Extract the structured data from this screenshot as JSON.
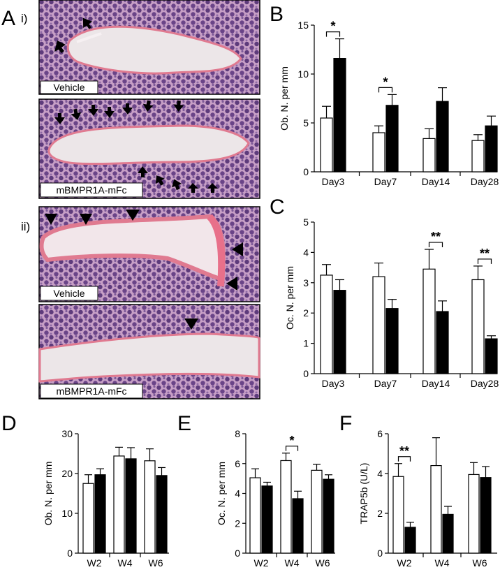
{
  "panel_letters": {
    "A": "A",
    "B": "B",
    "C": "C",
    "D": "D",
    "E": "E",
    "F": "F",
    "i": "i)",
    "ii": "ii)"
  },
  "micrographs": [
    {
      "label": "Vehicle",
      "markers": "arrows"
    },
    {
      "label": "mBMPR1A-mFc",
      "markers": "arrows"
    },
    {
      "label": "Vehicle",
      "markers": "arrowheads"
    },
    {
      "label": "mBMPR1A-mFc",
      "markers": "arrowheads"
    }
  ],
  "colors": {
    "bar_open": "#ffffff",
    "bar_filled": "#000000",
    "tissue": "#8b5a9a",
    "bone": "#ece6e8",
    "stain": "#e07a90"
  },
  "chart_data": [
    {
      "id": "B",
      "type": "bar",
      "ylabel": "Ob. N. per mm",
      "categories": [
        "Day3",
        "Day7",
        "Day14",
        "Day28"
      ],
      "ylim": [
        0,
        15
      ],
      "yticks": [
        0,
        5,
        10,
        15
      ],
      "series": [
        {
          "values": [
            5.5,
            4.0,
            3.4,
            3.2
          ],
          "errors": [
            1.2,
            0.7,
            1.0,
            0.6
          ]
        },
        {
          "values": [
            11.6,
            6.8,
            7.2,
            4.7
          ],
          "errors": [
            2.0,
            1.1,
            1.4,
            1.0
          ]
        }
      ],
      "significance": [
        {
          "category": 0,
          "label": "*"
        },
        {
          "category": 1,
          "label": "*"
        }
      ]
    },
    {
      "id": "C",
      "type": "bar",
      "ylabel": "Oc. N. per mm",
      "categories": [
        "Day3",
        "Day7",
        "Day14",
        "Day28"
      ],
      "ylim": [
        0,
        5
      ],
      "yticks": [
        0,
        1,
        2,
        3,
        4,
        5
      ],
      "series": [
        {
          "values": [
            3.25,
            3.2,
            3.45,
            3.1
          ],
          "errors": [
            0.35,
            0.45,
            0.65,
            0.45
          ]
        },
        {
          "values": [
            2.75,
            2.15,
            2.05,
            1.15
          ],
          "errors": [
            0.35,
            0.3,
            0.35,
            0.1
          ]
        }
      ],
      "significance": [
        {
          "category": 2,
          "label": "**"
        },
        {
          "category": 3,
          "label": "**"
        }
      ]
    },
    {
      "id": "D",
      "type": "bar",
      "ylabel": "Ob. N. per mm",
      "categories": [
        "W2",
        "W4",
        "W6"
      ],
      "ylim": [
        0,
        30
      ],
      "yticks": [
        0,
        10,
        20,
        30
      ],
      "series": [
        {
          "values": [
            17.5,
            24.4,
            23.2
          ],
          "errors": [
            2.2,
            2.2,
            3.0
          ]
        },
        {
          "values": [
            19.7,
            23.7,
            19.5
          ],
          "errors": [
            1.5,
            2.8,
            2.0
          ]
        }
      ],
      "significance": []
    },
    {
      "id": "E",
      "type": "bar",
      "ylabel": "Oc. N. per mm",
      "categories": [
        "W2",
        "W4",
        "W6"
      ],
      "ylim": [
        0,
        8
      ],
      "yticks": [
        0,
        2,
        4,
        6,
        8
      ],
      "series": [
        {
          "values": [
            5.05,
            6.2,
            5.55
          ],
          "errors": [
            0.6,
            0.5,
            0.4
          ]
        },
        {
          "values": [
            4.5,
            3.65,
            4.95
          ],
          "errors": [
            0.25,
            0.5,
            0.3
          ]
        }
      ],
      "significance": [
        {
          "category": 1,
          "label": "*"
        }
      ]
    },
    {
      "id": "F",
      "type": "bar",
      "ylabel": "TRAP5b (U/L)",
      "categories": [
        "W2",
        "W4",
        "W6"
      ],
      "ylim": [
        0,
        6
      ],
      "yticks": [
        0,
        2,
        4,
        6
      ],
      "series": [
        {
          "values": [
            3.85,
            4.4,
            3.95
          ],
          "errors": [
            0.65,
            1.4,
            0.6
          ]
        },
        {
          "values": [
            1.3,
            1.95,
            3.8
          ],
          "errors": [
            0.25,
            0.4,
            0.55
          ]
        }
      ],
      "significance": [
        {
          "category": 0,
          "label": "**"
        }
      ]
    }
  ]
}
